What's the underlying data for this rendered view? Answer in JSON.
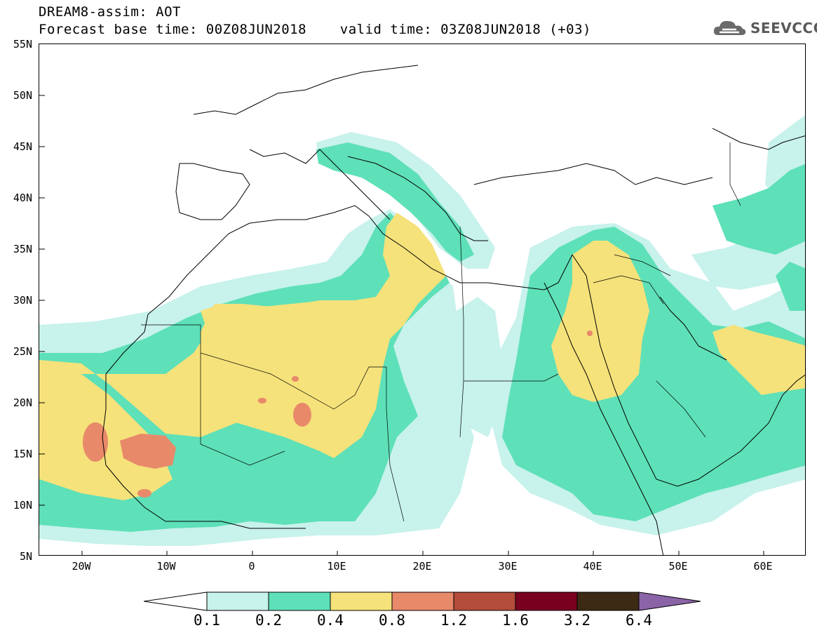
{
  "header": {
    "line1": "DREAM8-assim: AOT",
    "line2": "Forecast base time: 00Z08JUN2018    valid time: 03Z08JUN2018 (+03)"
  },
  "logo": {
    "text": "SEEVCCC",
    "icon": "cloud-logo-icon"
  },
  "map": {
    "lat_labels": [
      "55N",
      "50N",
      "45N",
      "40N",
      "35N",
      "30N",
      "25N",
      "20N",
      "15N",
      "10N",
      "5N"
    ],
    "lon_labels": [
      "20W",
      "10W",
      "0",
      "10E",
      "20E",
      "30E",
      "40E",
      "50E",
      "60E"
    ],
    "extent": {
      "lon": [
        -25,
        65
      ],
      "lat": [
        5,
        55
      ]
    }
  },
  "legend": {
    "colors": [
      "#c8f2ec",
      "#5ee0b8",
      "#f5e27a",
      "#e8896a",
      "#b34c3a",
      "#7a0020",
      "#3d2a14"
    ],
    "low_arrow_color": "#ffffff",
    "high_arrow_color": "#8b64a8",
    "values": [
      "0.1",
      "0.2",
      "0.4",
      "0.8",
      "1.2",
      "1.6",
      "3.2",
      "6.4"
    ]
  }
}
